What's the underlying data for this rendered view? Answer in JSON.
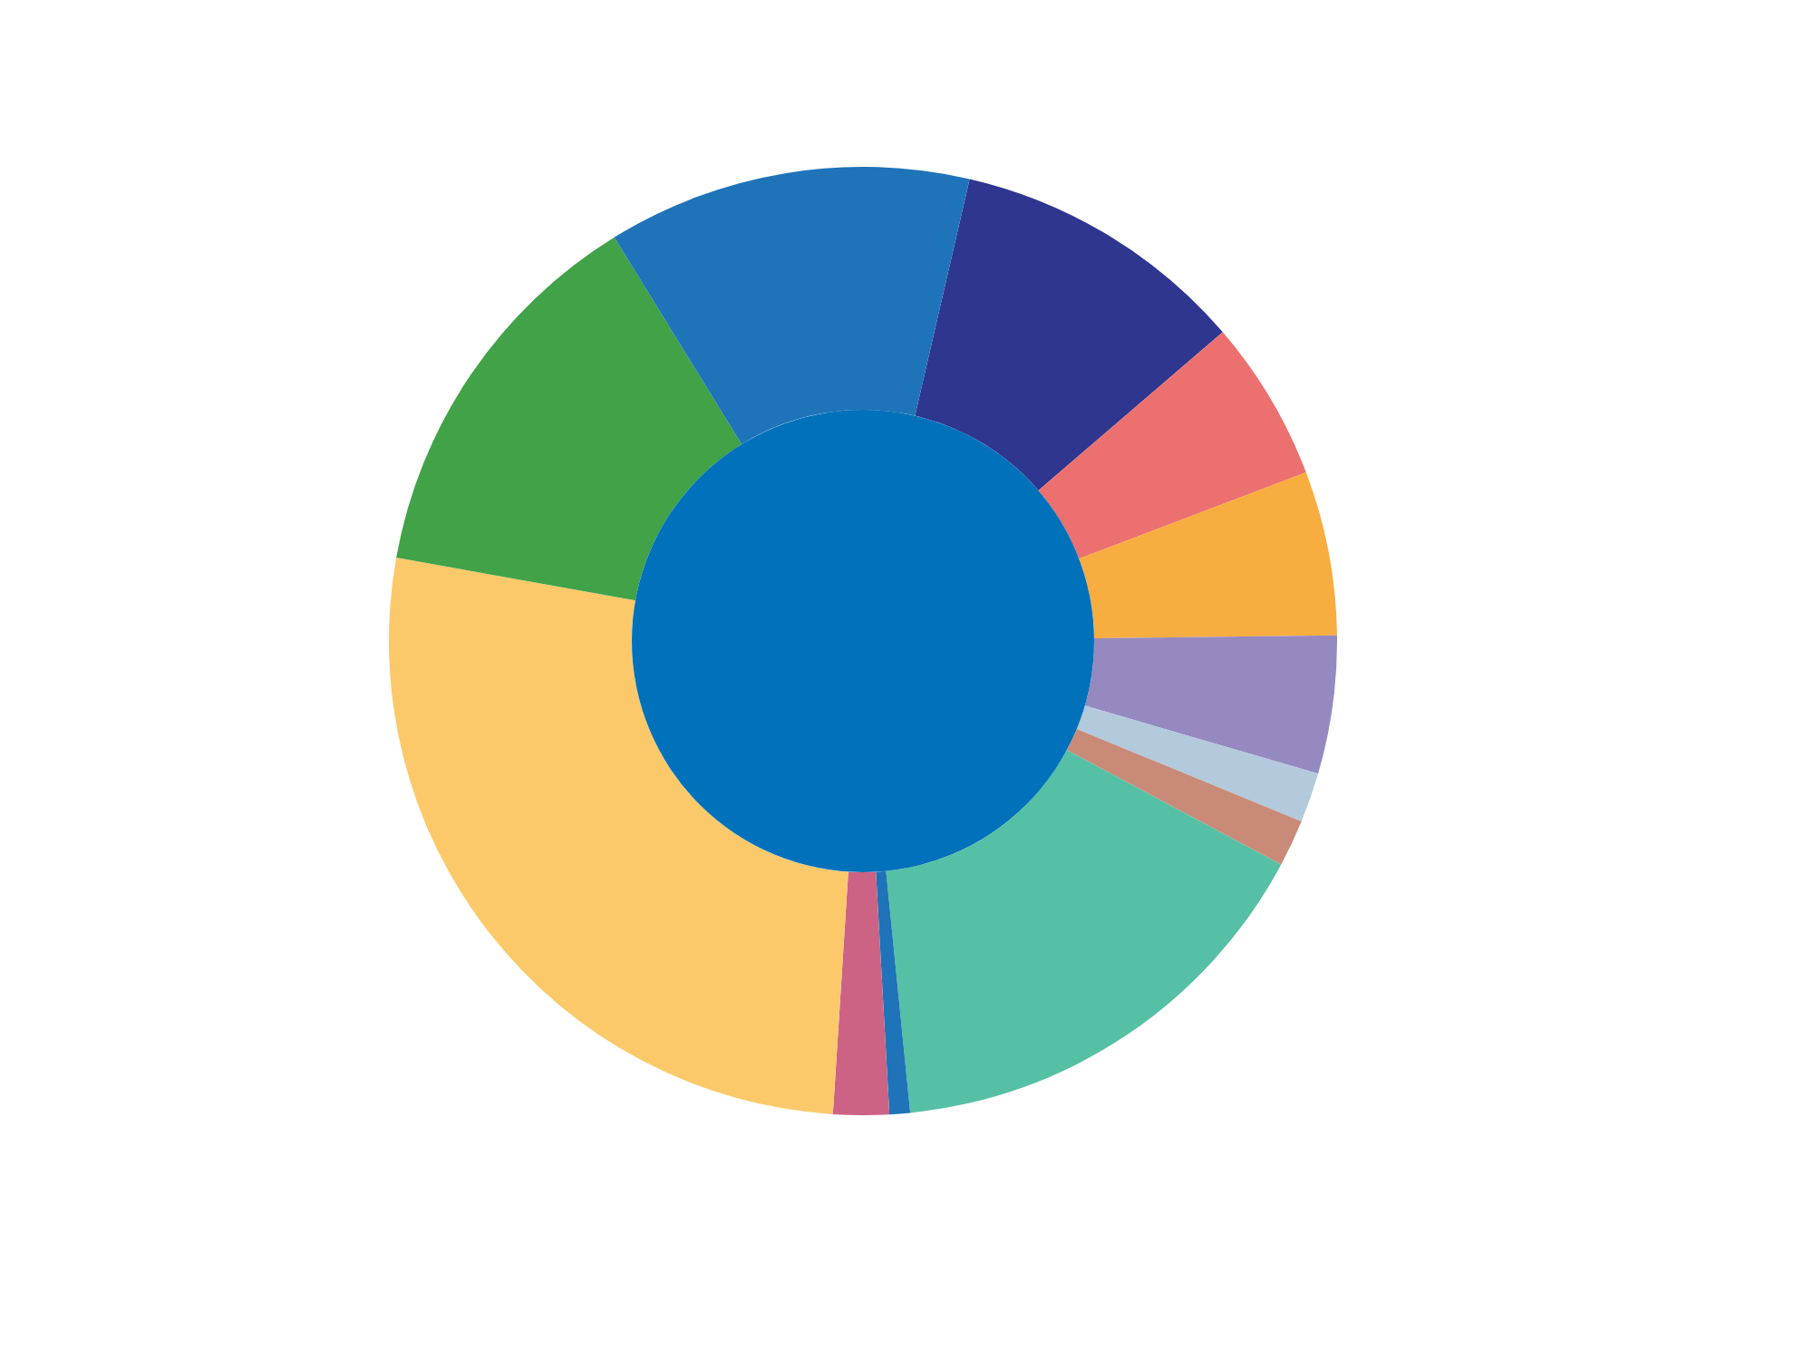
{
  "chart_data": {
    "type": "donut",
    "categories": [
      null,
      null,
      null,
      null,
      null,
      null,
      null,
      null,
      null,
      null,
      null,
      null
    ],
    "values": [
      10.1,
      5.5,
      5.6,
      4.7,
      1.7,
      1.6,
      15.6,
      0.7,
      1.9,
      26.8,
      13.4,
      12.4
    ],
    "colors": [
      "#2e3690",
      "#ec7070",
      "#f8ad40",
      "#9689c0",
      "#b3c9dc",
      "#c98a78",
      "#55c0a6",
      "#1f73b9",
      "#cc6384",
      "#fcc96a",
      "#41a248",
      "#1f73b9"
    ]
  }
}
